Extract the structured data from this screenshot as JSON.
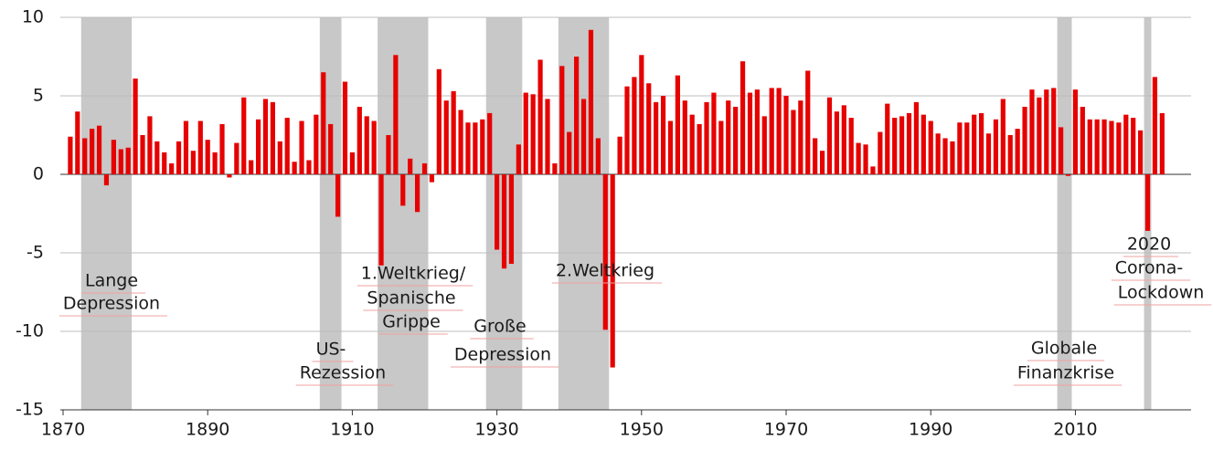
{
  "chart_data": {
    "type": "bar",
    "color": "#e60000",
    "band_color": "#c8c8c8",
    "grid": true,
    "xlim": [
      1870,
      2026
    ],
    "xticks": [
      1870,
      1890,
      1910,
      1930,
      1950,
      1970,
      1990,
      2010
    ],
    "ylim": [
      -15,
      10
    ],
    "yticks": [
      -15,
      -10,
      -5,
      0,
      5,
      10
    ],
    "x": [
      1871,
      1872,
      1873,
      1874,
      1875,
      1876,
      1877,
      1878,
      1879,
      1880,
      1881,
      1882,
      1883,
      1884,
      1885,
      1886,
      1887,
      1888,
      1889,
      1890,
      1891,
      1892,
      1893,
      1894,
      1895,
      1896,
      1897,
      1898,
      1899,
      1900,
      1901,
      1902,
      1903,
      1904,
      1905,
      1906,
      1907,
      1908,
      1909,
      1910,
      1911,
      1912,
      1913,
      1914,
      1915,
      1916,
      1917,
      1918,
      1919,
      1920,
      1921,
      1922,
      1923,
      1924,
      1925,
      1926,
      1927,
      1928,
      1929,
      1930,
      1931,
      1932,
      1933,
      1934,
      1935,
      1936,
      1937,
      1938,
      1939,
      1940,
      1941,
      1942,
      1943,
      1944,
      1945,
      1946,
      1947,
      1948,
      1949,
      1950,
      1951,
      1952,
      1953,
      1954,
      1955,
      1956,
      1957,
      1958,
      1959,
      1960,
      1961,
      1962,
      1963,
      1964,
      1965,
      1966,
      1967,
      1968,
      1969,
      1970,
      1971,
      1972,
      1973,
      1974,
      1975,
      1976,
      1977,
      1978,
      1979,
      1980,
      1981,
      1982,
      1983,
      1984,
      1985,
      1986,
      1987,
      1988,
      1989,
      1990,
      1991,
      1992,
      1993,
      1994,
      1995,
      1996,
      1997,
      1998,
      1999,
      2000,
      2001,
      2002,
      2003,
      2004,
      2005,
      2006,
      2007,
      2008,
      2009,
      2010,
      2011,
      2012,
      2013,
      2014,
      2015,
      2016,
      2017,
      2018,
      2019,
      2020,
      2021,
      2022
    ],
    "values": [
      2.4,
      4.0,
      2.3,
      2.9,
      3.1,
      -0.7,
      2.2,
      1.6,
      1.7,
      6.1,
      2.5,
      3.7,
      2.1,
      1.4,
      0.7,
      2.1,
      3.4,
      1.5,
      3.4,
      2.2,
      1.4,
      3.2,
      -0.2,
      2.0,
      4.9,
      0.9,
      3.5,
      4.8,
      4.6,
      2.1,
      3.6,
      0.8,
      3.4,
      0.9,
      3.8,
      6.5,
      3.2,
      -2.7,
      5.9,
      1.4,
      4.3,
      3.7,
      3.4,
      -5.8,
      2.5,
      7.6,
      -2.0,
      1.0,
      -2.4,
      0.7,
      -0.5,
      6.7,
      4.7,
      5.3,
      4.1,
      3.3,
      3.3,
      3.5,
      3.9,
      -4.8,
      -6.0,
      -5.7,
      1.9,
      5.2,
      5.1,
      7.3,
      4.8,
      0.7,
      6.9,
      2.7,
      7.5,
      4.8,
      9.2,
      2.3,
      -9.9,
      -12.3,
      2.4,
      5.6,
      6.2,
      7.6,
      5.8,
      4.6,
      5.0,
      3.4,
      6.3,
      4.7,
      3.8,
      3.2,
      4.6,
      5.2,
      3.4,
      4.7,
      4.3,
      7.2,
      5.2,
      5.4,
      3.7,
      5.5,
      5.5,
      5.0,
      4.1,
      4.7,
      6.6,
      2.3,
      1.5,
      4.9,
      4.0,
      4.4,
      3.6,
      2.0,
      1.9,
      0.5,
      2.7,
      4.5,
      3.6,
      3.7,
      3.9,
      4.6,
      3.8,
      3.4,
      2.6,
      2.3,
      2.1,
      3.3,
      3.3,
      3.8,
      3.9,
      2.6,
      3.5,
      4.8,
      2.5,
      2.9,
      4.3,
      5.4,
      4.9,
      5.4,
      5.5,
      3.0,
      -0.1,
      5.4,
      4.3,
      3.5,
      3.5,
      3.5,
      3.4,
      3.3,
      3.8,
      3.6,
      2.8,
      -3.6,
      6.2,
      3.9
    ],
    "bands": [
      {
        "start": 1873,
        "end": 1879,
        "label": [
          "Lange",
          "Depression"
        ]
      },
      {
        "start": 1906,
        "end": 1908,
        "label": [
          "US-",
          "Rezession"
        ]
      },
      {
        "start": 1914,
        "end": 1920,
        "label": [
          "1.Weltkrieg/",
          "Spanische",
          "Grippe"
        ]
      },
      {
        "start": 1929,
        "end": 1933,
        "label": [
          "Große",
          "Depression"
        ]
      },
      {
        "start": 1939,
        "end": 1945,
        "label": [
          "2.Weltkrieg"
        ]
      },
      {
        "start": 2008,
        "end": 2009,
        "label": [
          "Globale",
          "Finanzkrise"
        ]
      },
      {
        "start": 2020,
        "end": 2020,
        "label": [
          "2020",
          "Corona-",
          "Lockdown"
        ]
      }
    ]
  }
}
